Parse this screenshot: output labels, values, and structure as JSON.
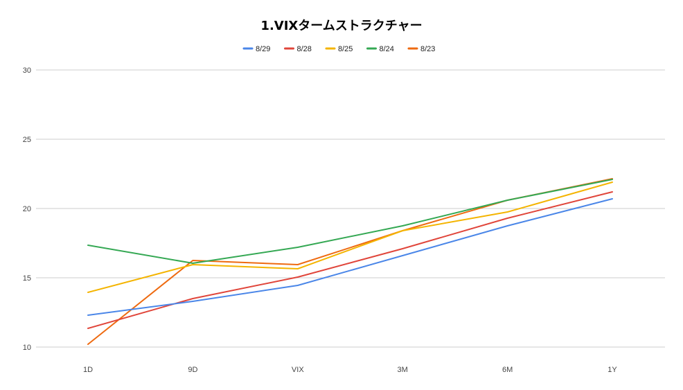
{
  "chart_data": {
    "type": "line",
    "title": "1.VIXタームストラクチャー",
    "xlabel": "",
    "ylabel": "",
    "categories": [
      "1D",
      "9D",
      "VIX",
      "3M",
      "6M",
      "1Y"
    ],
    "ylim": [
      10,
      30
    ],
    "yticks": [
      10,
      15,
      20,
      25,
      30
    ],
    "grid": true,
    "legend_position": "top",
    "series": [
      {
        "name": "8/29",
        "color": "#4a86e8",
        "values": [
          12.3,
          13.3,
          14.45,
          16.6,
          18.75,
          20.7
        ]
      },
      {
        "name": "8/28",
        "color": "#e0453a",
        "values": [
          11.35,
          13.5,
          15.05,
          17.1,
          19.3,
          21.2
        ]
      },
      {
        "name": "8/25",
        "color": "#f4b400",
        "values": [
          13.95,
          15.95,
          15.65,
          18.4,
          19.75,
          21.9
        ]
      },
      {
        "name": "8/24",
        "color": "#34a853",
        "values": [
          17.35,
          16.05,
          17.2,
          18.75,
          20.6,
          22.1
        ]
      },
      {
        "name": "8/23",
        "color": "#ee6a10",
        "values": [
          10.2,
          16.25,
          15.95,
          18.4,
          20.6,
          22.15
        ]
      }
    ]
  }
}
